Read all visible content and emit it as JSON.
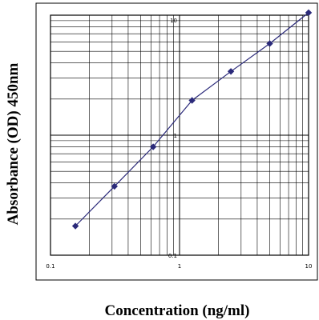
{
  "chart_data": {
    "type": "line",
    "title": "",
    "xlabel": "Concentration (ng/ml)",
    "ylabel": "Absorbance (OD) 450nm",
    "x_scale": "log",
    "y_scale": "log",
    "xlim": [
      0.1,
      10
    ],
    "ylim": [
      0.1,
      10
    ],
    "x_ticks": [
      {
        "value": 0.1,
        "label": "0.1"
      },
      {
        "value": 1,
        "label": "1"
      },
      {
        "value": 10,
        "label": "10"
      }
    ],
    "y_ticks": [
      {
        "value": 0.1,
        "label": "0.1"
      },
      {
        "value": 1,
        "label": "1"
      },
      {
        "value": 10,
        "label": "10"
      }
    ],
    "grid": true,
    "legend": "none",
    "marker": "diamond",
    "color": "#2b2a7a",
    "series": [
      {
        "x": [
          0.156,
          0.313,
          0.625,
          1.25,
          2.5,
          5,
          10
        ],
        "y": [
          0.175,
          0.375,
          0.8,
          1.95,
          3.4,
          5.8,
          10.5
        ]
      }
    ]
  }
}
